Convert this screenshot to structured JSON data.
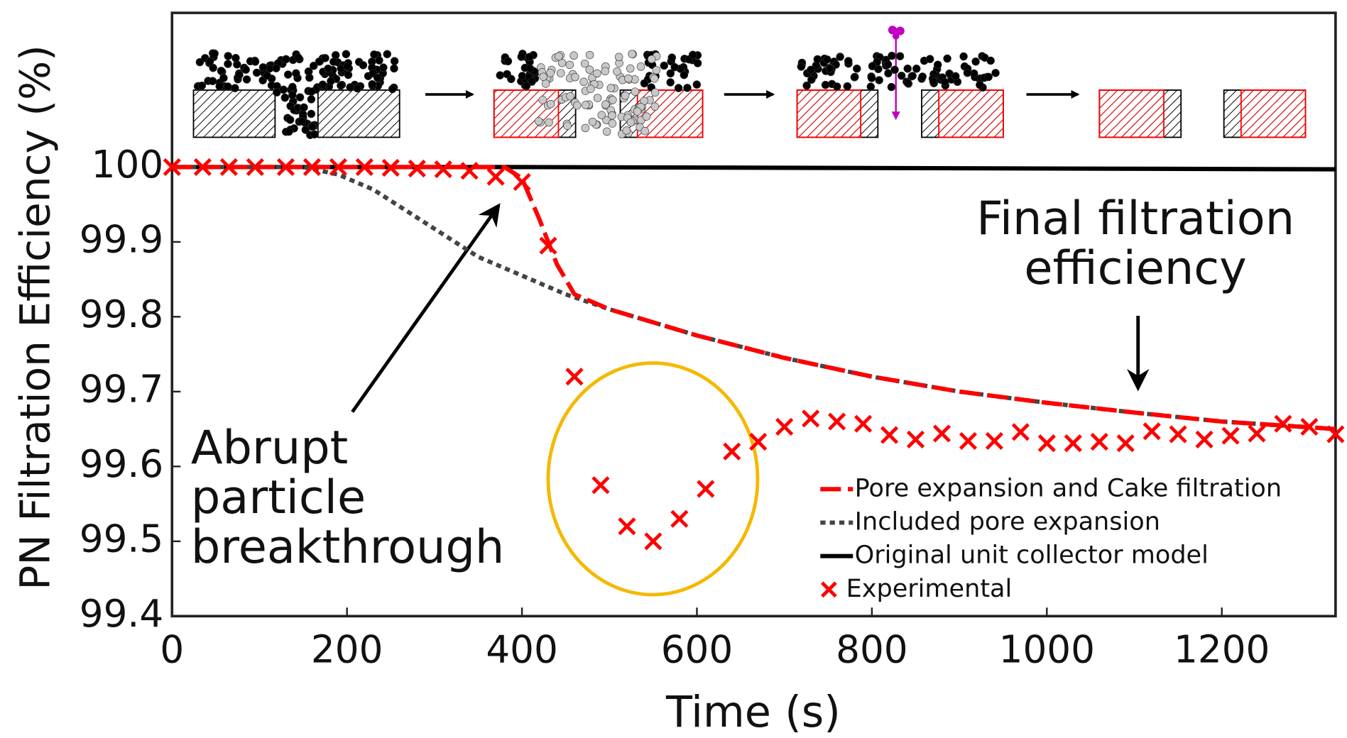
{
  "chart_data": {
    "type": "line",
    "x_label": "Time (s)",
    "y_label": "PN Filtration Efficiency (%)",
    "xlim": [
      0,
      1330
    ],
    "ylim": [
      99.4,
      100.206
    ],
    "xticks": [
      0,
      200,
      400,
      600,
      800,
      1000,
      1200
    ],
    "yticks": [
      99.4,
      99.5,
      99.6,
      99.7,
      99.8,
      99.9,
      100
    ],
    "legend": "lower right",
    "series": [
      {
        "name": "Pore expansion and Cake filtration",
        "color": "#ff0000",
        "style": "dashed",
        "x": [
          0,
          380,
          400,
          420,
          440,
          460,
          500,
          600,
          700,
          800,
          900,
          1000,
          1100,
          1200,
          1330
        ],
        "values": [
          100,
          100,
          99.985,
          99.93,
          99.87,
          99.83,
          99.81,
          99.775,
          99.745,
          99.72,
          99.7,
          99.685,
          99.672,
          99.66,
          99.65
        ]
      },
      {
        "name": "Included pore expansion",
        "color": "#444444",
        "style": "dotted",
        "x": [
          0,
          150,
          190,
          230,
          270,
          310,
          350,
          400,
          450,
          500,
          600,
          700,
          800,
          900,
          1000,
          1100,
          1200,
          1330
        ],
        "values": [
          100,
          100,
          99.99,
          99.97,
          99.94,
          99.91,
          99.88,
          99.855,
          99.83,
          99.81,
          99.775,
          99.745,
          99.72,
          99.7,
          99.685,
          99.672,
          99.66,
          99.65
        ]
      },
      {
        "name": "Original unit collector model",
        "color": "#000000",
        "style": "solid",
        "x": [
          0,
          400,
          1330
        ],
        "values": [
          100,
          100,
          99.997
        ]
      },
      {
        "name": "Experimental",
        "color": "#ff0000",
        "style": "marker",
        "x": [
          0,
          35,
          65,
          95,
          130,
          160,
          190,
          220,
          250,
          280,
          310,
          340,
          370,
          400,
          430,
          460,
          490,
          520,
          550,
          580,
          610,
          640,
          670,
          700,
          730,
          760,
          790,
          820,
          850,
          880,
          910,
          940,
          970,
          1000,
          1030,
          1060,
          1090,
          1120,
          1150,
          1180,
          1210,
          1240,
          1270,
          1300,
          1330
        ],
        "values": [
          100,
          100,
          100,
          100,
          100,
          100,
          100,
          100,
          99.999,
          99.998,
          99.997,
          99.995,
          99.987,
          99.98,
          99.895,
          99.72,
          99.575,
          99.52,
          99.5,
          99.53,
          99.57,
          99.62,
          99.633,
          99.653,
          99.664,
          99.66,
          99.657,
          99.642,
          99.636,
          99.644,
          99.634,
          99.634,
          99.646,
          99.631,
          99.631,
          99.633,
          99.631,
          99.647,
          99.643,
          99.636,
          99.641,
          99.644,
          99.657,
          99.653,
          99.643
        ]
      }
    ],
    "annotations": [
      {
        "lines": [
          "Abrupt",
          "particle",
          "breakthrough"
        ]
      },
      {
        "lines": [
          "Final filtration",
          "efficiency"
        ]
      }
    ]
  }
}
